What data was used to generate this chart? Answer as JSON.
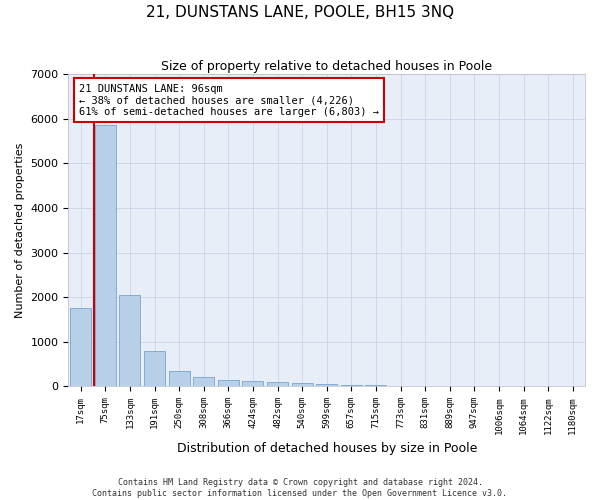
{
  "title": "21, DUNSTANS LANE, POOLE, BH15 3NQ",
  "subtitle": "Size of property relative to detached houses in Poole",
  "xlabel": "Distribution of detached houses by size in Poole",
  "ylabel": "Number of detached properties",
  "categories": [
    "17sqm",
    "75sqm",
    "133sqm",
    "191sqm",
    "250sqm",
    "308sqm",
    "366sqm",
    "424sqm",
    "482sqm",
    "540sqm",
    "599sqm",
    "657sqm",
    "715sqm",
    "773sqm",
    "831sqm",
    "889sqm",
    "947sqm",
    "1006sqm",
    "1064sqm",
    "1122sqm",
    "1180sqm"
  ],
  "values": [
    1750,
    5850,
    2050,
    800,
    350,
    220,
    150,
    110,
    95,
    75,
    55,
    40,
    30,
    0,
    0,
    0,
    0,
    0,
    0,
    0,
    0
  ],
  "bar_color": "#b8cfe8",
  "bar_edge_color": "#6699cc",
  "red_line_color": "#cc0000",
  "annotation_text": "21 DUNSTANS LANE: 96sqm\n← 38% of detached houses are smaller (4,226)\n61% of semi-detached houses are larger (6,803) →",
  "annotation_box_color": "#ffffff",
  "annotation_box_edge": "#cc0000",
  "grid_color": "#ced8ea",
  "background_color": "#e8eef8",
  "ylim": [
    0,
    7000
  ],
  "yticks": [
    0,
    1000,
    2000,
    3000,
    4000,
    5000,
    6000,
    7000
  ],
  "footer_line1": "Contains HM Land Registry data © Crown copyright and database right 2024.",
  "footer_line2": "Contains public sector information licensed under the Open Government Licence v3.0."
}
